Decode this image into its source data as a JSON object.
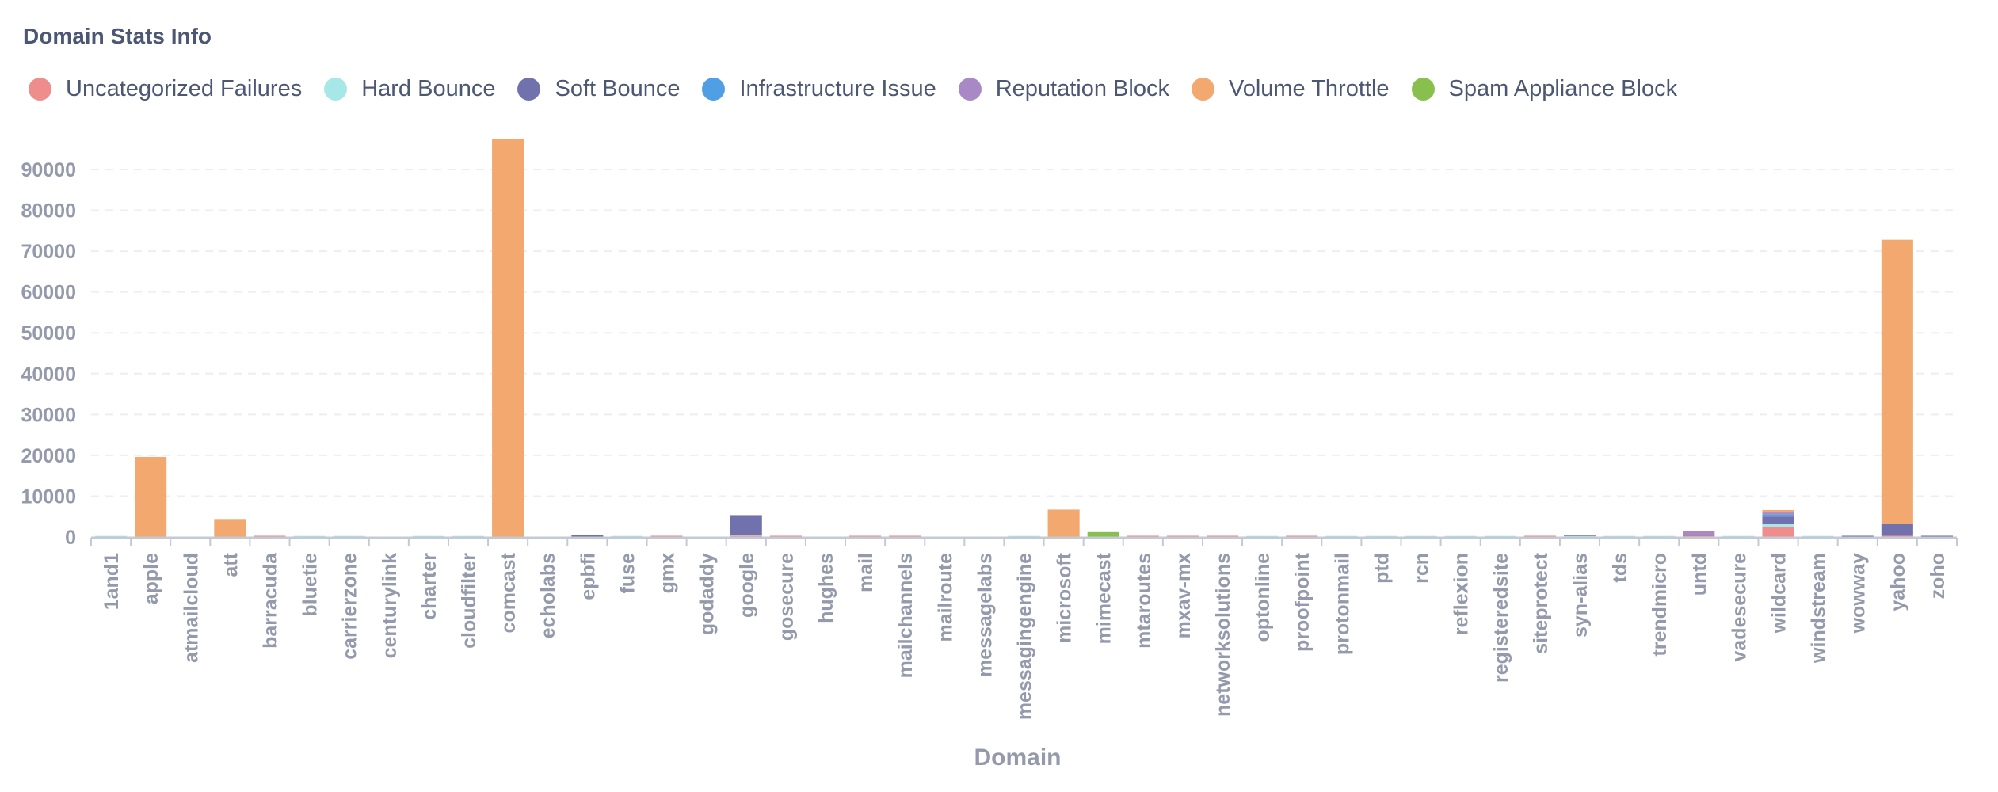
{
  "panel": {
    "title": "Domain Stats Info"
  },
  "chart_data": {
    "type": "bar",
    "stacked": true,
    "title": "Domain Stats Info",
    "xlabel": "Domain",
    "ylabel": "",
    "ylim": [
      0,
      100000
    ],
    "yticks": [
      0,
      10000,
      20000,
      30000,
      40000,
      50000,
      60000,
      70000,
      80000,
      90000
    ],
    "grid": true,
    "legend_position": "top-left",
    "categories": [
      "1and1",
      "apple",
      "atmailcloud",
      "att",
      "barracuda",
      "bluetie",
      "carrierzone",
      "centurylink",
      "charter",
      "cloudfilter",
      "comcast",
      "echolabs",
      "epbfi",
      "fuse",
      "gmx",
      "godaddy",
      "google",
      "gosecure",
      "hughes",
      "mail",
      "mailchannels",
      "mailroute",
      "messagelabs",
      "messagingengine",
      "microsoft",
      "mimecast",
      "mtaroutes",
      "mxav-mx",
      "networksolutions",
      "optonline",
      "proofpoint",
      "protonmail",
      "ptd",
      "rcn",
      "reflexion",
      "registeredsite",
      "siteprotect",
      "syn-alias",
      "tds",
      "trendmicro",
      "untd",
      "vadesecure",
      "wildcard",
      "windstream",
      "wowway",
      "yahoo",
      "zoho"
    ],
    "series": [
      {
        "name": "Uncategorized Failures",
        "color": "#ef8c8c",
        "values": [
          0,
          0,
          0,
          0,
          300,
          0,
          0,
          0,
          0,
          0,
          0,
          0,
          0,
          0,
          300,
          0,
          300,
          300,
          0,
          300,
          300,
          0,
          0,
          0,
          0,
          0,
          300,
          300,
          300,
          0,
          300,
          0,
          0,
          0,
          0,
          0,
          300,
          0,
          0,
          0,
          300,
          0,
          2500,
          0,
          0,
          300,
          0
        ]
      },
      {
        "name": "Hard Bounce",
        "color": "#a6e7e7",
        "values": [
          250,
          0,
          0,
          0,
          0,
          250,
          250,
          0,
          250,
          250,
          0,
          0,
          0,
          250,
          0,
          0,
          250,
          0,
          0,
          0,
          0,
          0,
          0,
          250,
          0,
          0,
          0,
          0,
          0,
          250,
          0,
          250,
          250,
          250,
          250,
          250,
          0,
          250,
          250,
          250,
          0,
          250,
          700,
          250,
          0,
          0,
          0
        ]
      },
      {
        "name": "Soft Bounce",
        "color": "#7172ad",
        "values": [
          0,
          0,
          0,
          0,
          0,
          0,
          0,
          0,
          0,
          0,
          0,
          0,
          400,
          0,
          0,
          0,
          4800,
          0,
          0,
          0,
          0,
          0,
          0,
          0,
          0,
          0,
          0,
          0,
          0,
          0,
          0,
          0,
          0,
          0,
          0,
          0,
          0,
          200,
          0,
          0,
          200,
          0,
          1800,
          0,
          300,
          3000,
          300
        ]
      },
      {
        "name": "Infrastructure Issue",
        "color": "#509ee3",
        "values": [
          0,
          0,
          0,
          0,
          0,
          0,
          0,
          0,
          0,
          0,
          0,
          0,
          0,
          0,
          0,
          0,
          0,
          0,
          0,
          0,
          0,
          0,
          0,
          0,
          0,
          0,
          0,
          0,
          0,
          0,
          0,
          0,
          0,
          0,
          0,
          0,
          0,
          0,
          0,
          0,
          0,
          0,
          500,
          0,
          0,
          0,
          0
        ]
      },
      {
        "name": "Reputation Block",
        "color": "#a989c5",
        "values": [
          0,
          0,
          0,
          0,
          0,
          0,
          0,
          0,
          0,
          0,
          0,
          0,
          0,
          0,
          0,
          0,
          0,
          0,
          0,
          0,
          0,
          0,
          0,
          0,
          0,
          0,
          0,
          0,
          0,
          0,
          0,
          0,
          0,
          0,
          0,
          0,
          0,
          0,
          0,
          0,
          900,
          0,
          500,
          0,
          0,
          0,
          0
        ]
      },
      {
        "name": "Volume Throttle",
        "color": "#f2a86f",
        "values": [
          0,
          19600,
          0,
          4400,
          0,
          0,
          0,
          0,
          0,
          0,
          97500,
          0,
          0,
          0,
          0,
          0,
          0,
          0,
          0,
          0,
          0,
          0,
          0,
          0,
          6700,
          0,
          0,
          0,
          0,
          0,
          0,
          0,
          0,
          0,
          0,
          0,
          0,
          0,
          0,
          0,
          0,
          0,
          600,
          0,
          0,
          69500,
          0
        ]
      },
      {
        "name": "Spam Appliance Block",
        "color": "#88bf4d",
        "values": [
          0,
          0,
          0,
          0,
          0,
          0,
          0,
          0,
          0,
          0,
          0,
          0,
          0,
          0,
          0,
          0,
          0,
          0,
          0,
          0,
          0,
          0,
          0,
          0,
          0,
          1200,
          0,
          0,
          0,
          0,
          0,
          0,
          0,
          0,
          0,
          0,
          0,
          0,
          0,
          0,
          0,
          0,
          0,
          0,
          0,
          0,
          0
        ]
      }
    ]
  }
}
